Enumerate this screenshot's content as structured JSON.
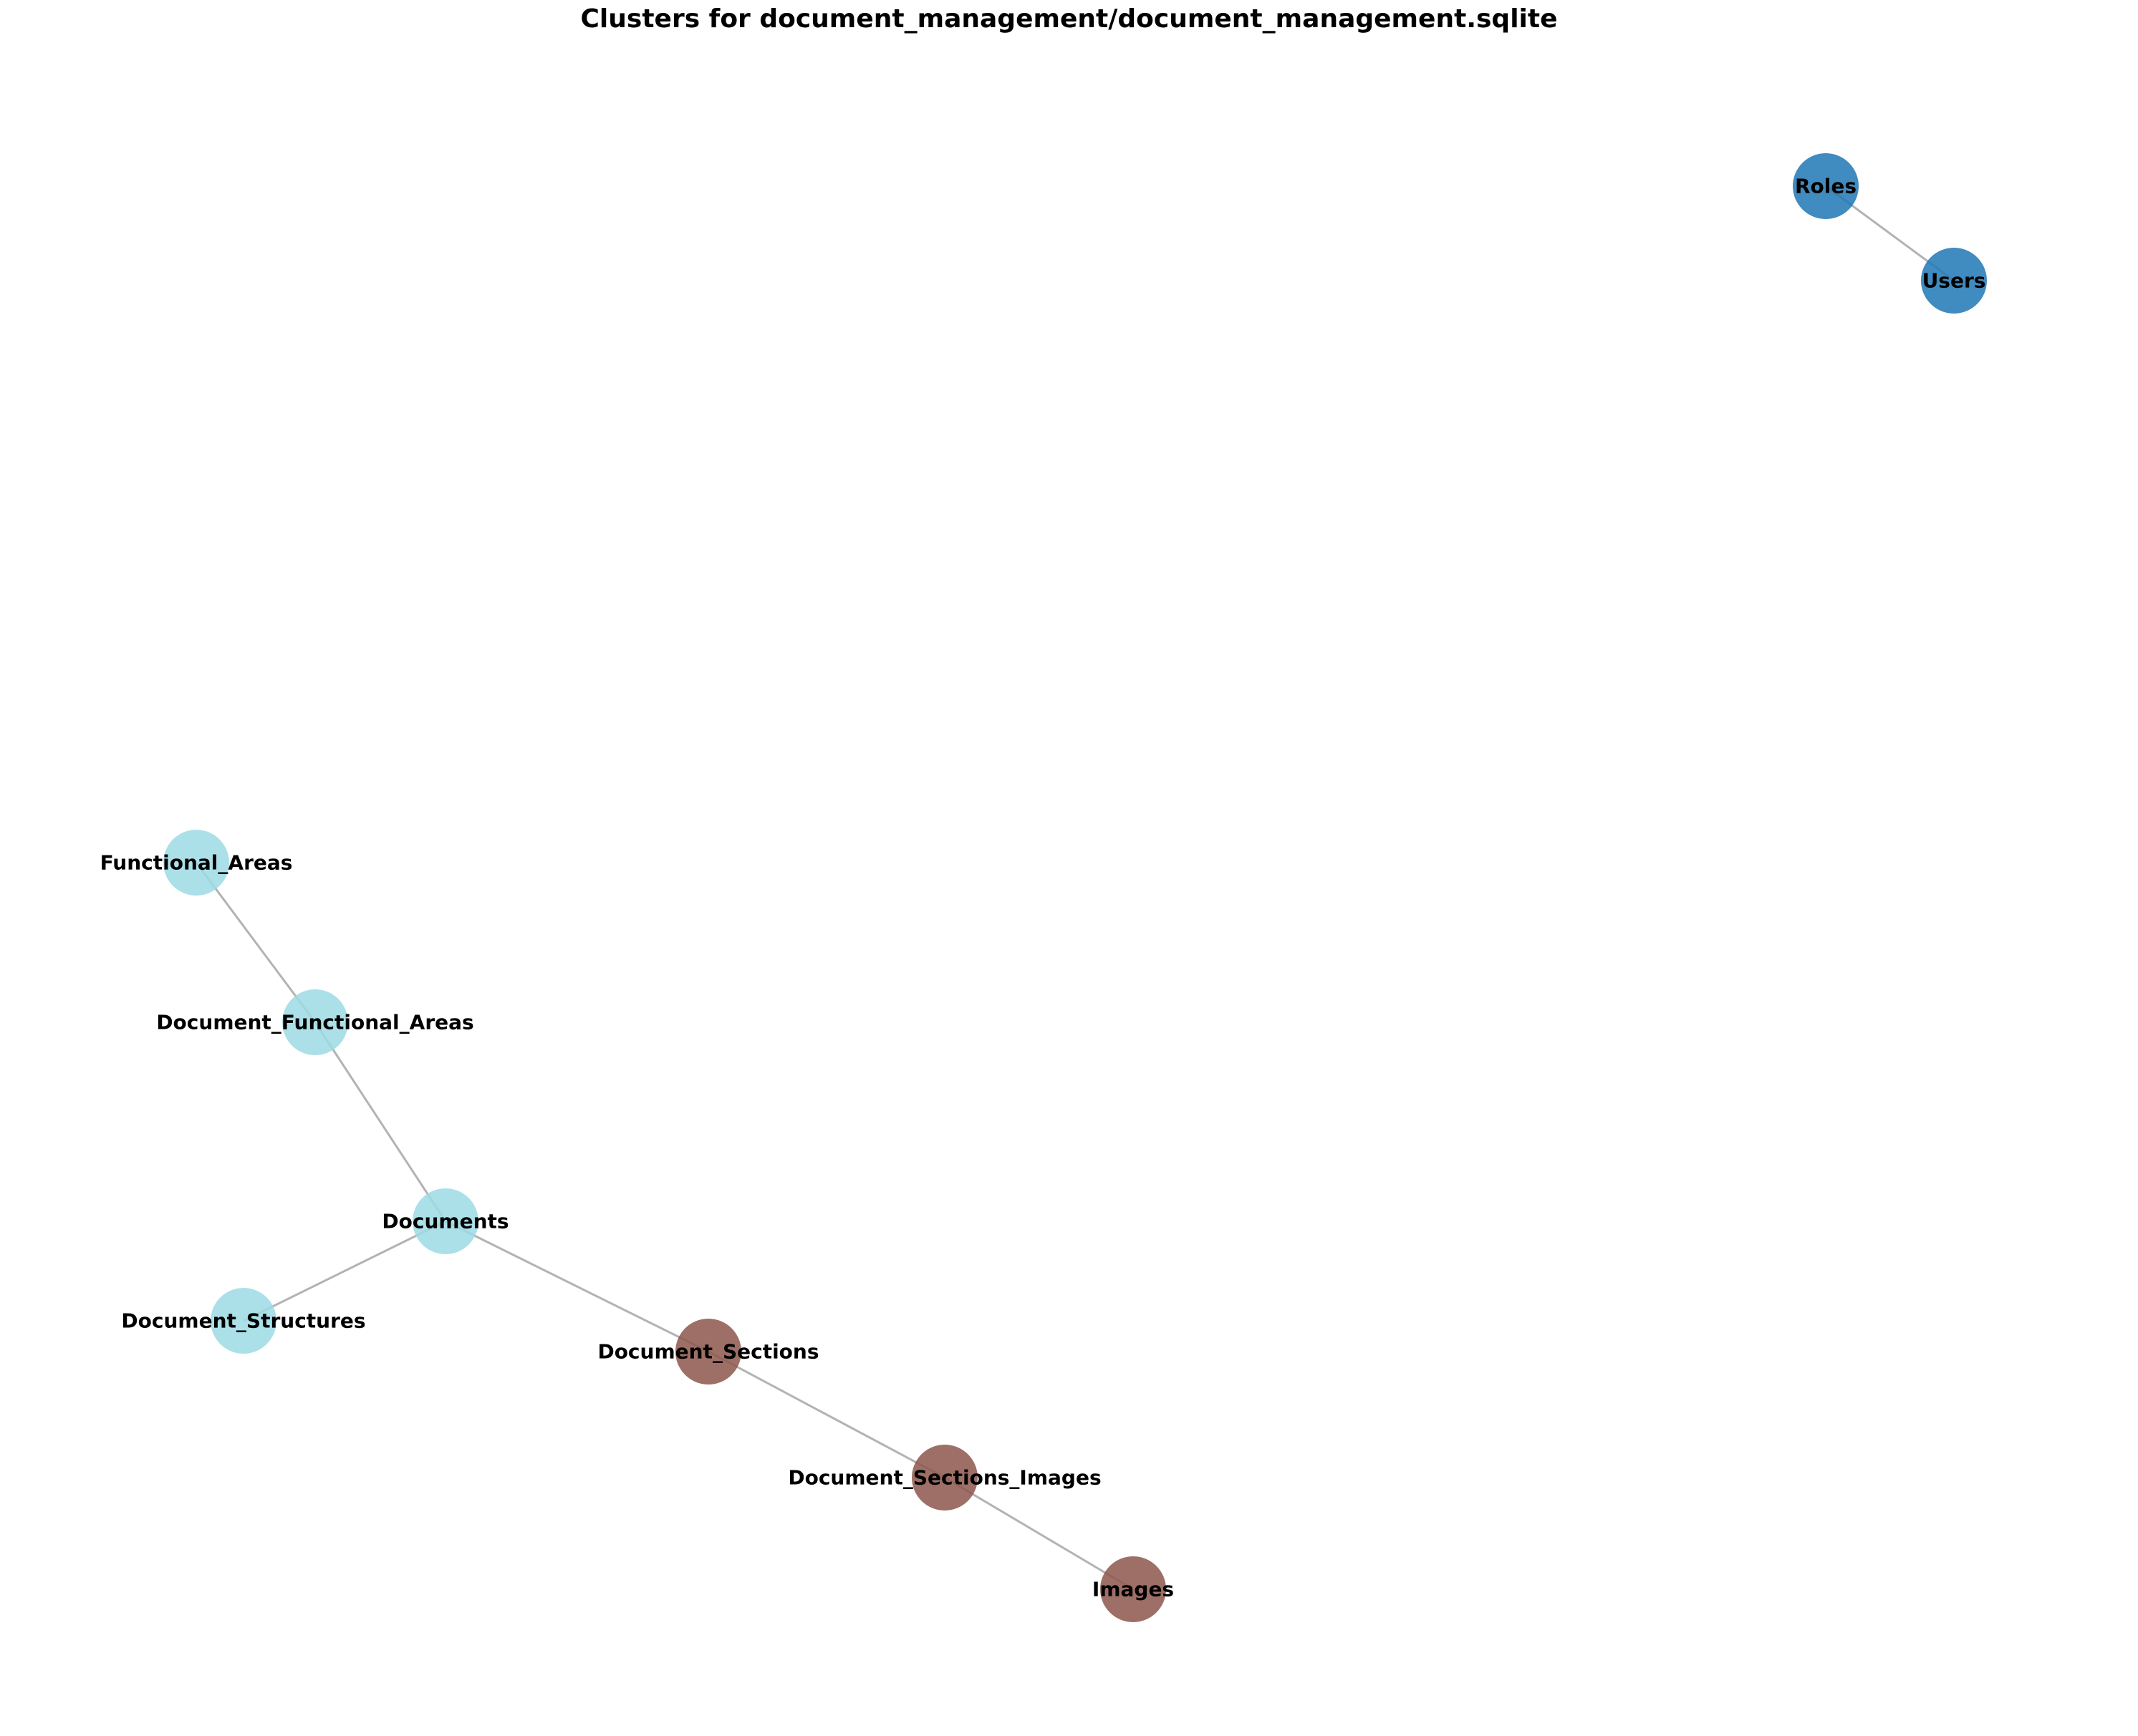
{
  "title": "Clusters for document_management/document_management.sqlite",
  "clusters": [
    {
      "id": "c1",
      "color": "#1f77b4"
    },
    {
      "id": "c2",
      "color": "#9edae5"
    },
    {
      "id": "c3",
      "color": "#8c564b"
    }
  ],
  "nodes": [
    {
      "id": "Roles",
      "label": "Roles",
      "cluster": "c1"
    },
    {
      "id": "Users",
      "label": "Users",
      "cluster": "c1"
    },
    {
      "id": "Functional_Areas",
      "label": "Functional_Areas",
      "cluster": "c2"
    },
    {
      "id": "Document_Functional_Areas",
      "label": "Document_Functional_Areas",
      "cluster": "c2"
    },
    {
      "id": "Documents",
      "label": "Documents",
      "cluster": "c2"
    },
    {
      "id": "Document_Structures",
      "label": "Document_Structures",
      "cluster": "c2"
    },
    {
      "id": "Document_Sections",
      "label": "Document_Sections",
      "cluster": "c3"
    },
    {
      "id": "Document_Sections_Images",
      "label": "Document_Sections_Images",
      "cluster": "c3"
    },
    {
      "id": "Images",
      "label": "Images",
      "cluster": "c3"
    }
  ],
  "edges": [
    [
      "Roles",
      "Users"
    ],
    [
      "Functional_Areas",
      "Document_Functional_Areas"
    ],
    [
      "Document_Functional_Areas",
      "Documents"
    ],
    [
      "Documents",
      "Document_Structures"
    ],
    [
      "Documents",
      "Document_Sections"
    ],
    [
      "Document_Sections",
      "Document_Sections_Images"
    ],
    [
      "Document_Sections_Images",
      "Images"
    ]
  ]
}
